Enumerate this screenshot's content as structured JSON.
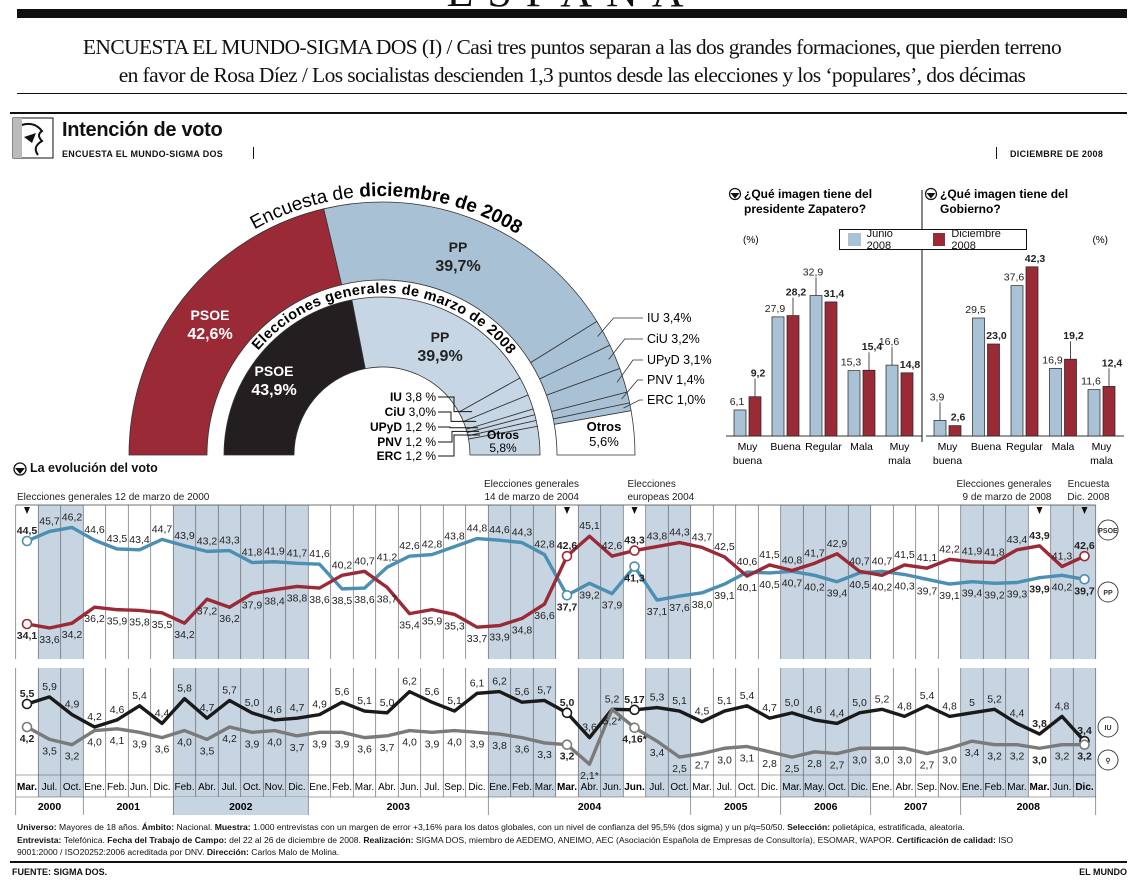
{
  "section": "ESPAÑA",
  "headline": {
    "lead": "ENCUESTA EL MUNDO-SIGMA DOS (I)",
    "line1_rest": " / Casi tres puntos separan a las dos grandes formaciones, que pierden terreno",
    "line2": "en favor de Rosa Díez / Los socialistas descienden 1,3 puntos desde las elecciones y los ‘populares’, dos décimas"
  },
  "graphic": {
    "title": "Intención de voto",
    "subtitle": "ENCUESTA EL MUNDO-SIGMA DOS",
    "date": "DICIEMBRE DE 2008",
    "evolution_title": "La evolución del voto"
  },
  "colors": {
    "psoe": "#9b2a37",
    "pp_outer": "#a8c1d5",
    "pp_inner": "#c6d6e4",
    "psoe_2008_election": "#231f20",
    "junio_bar": "#a9c2d6",
    "diciembre_bar": "#9b2a37",
    "pp_line": "#4b8fb2",
    "psoe_line": "#9b2a37",
    "black_line": "#1a1a1a",
    "gray_line": "#7a7a7a",
    "shade": "#c7d4e1"
  },
  "chart_data": [
    {
      "type": "pie",
      "variant": "half-donut",
      "rings": [
        {
          "title_normal": "Encuesta de ",
          "title_bold": "diciembre de 2008",
          "slices": [
            {
              "label": "PSOE",
              "value": 42.6,
              "text": "42,6%"
            },
            {
              "label": "PP",
              "value": 39.7,
              "text": "39,7%"
            },
            {
              "label": "IU",
              "value": 3.4,
              "text": "3,4%"
            },
            {
              "label": "CiU",
              "value": 3.2,
              "text": "3,2%"
            },
            {
              "label": "UPyD",
              "value": 3.1,
              "text": "3,1%"
            },
            {
              "label": "PNV",
              "value": 1.4,
              "text": "1,4%"
            },
            {
              "label": "ERC",
              "value": 1.0,
              "text": "1,0%"
            },
            {
              "label": "Otros",
              "value": 5.6,
              "text": "5,6%"
            }
          ]
        },
        {
          "title_bold": "Elecciones generales de marzo de 2008",
          "slices": [
            {
              "label": "PSOE",
              "value": 43.9,
              "text": "43,9%"
            },
            {
              "label": "PP",
              "value": 39.9,
              "text": "39,9%"
            },
            {
              "label": "IU",
              "value": 3.8,
              "text": "3,8 %"
            },
            {
              "label": "CiU",
              "value": 3.0,
              "text": "3,0%"
            },
            {
              "label": "UPyD",
              "value": 1.2,
              "text": "1,2 %"
            },
            {
              "label": "PNV",
              "value": 1.2,
              "text": "1,2 %"
            },
            {
              "label": "ERC",
              "value": 1.2,
              "text": "1,2 %"
            },
            {
              "label": "Otros",
              "value": 5.8,
              "text": "5,8%"
            }
          ]
        }
      ]
    },
    {
      "type": "bar",
      "title": "¿Qué imagen tiene del presidente Zapatero?",
      "title_lines": [
        "¿Qué imagen tiene del",
        "presidente Zapatero?"
      ],
      "ylabel": "(%)",
      "categories": [
        "Muy buena",
        "Buena",
        "Regular",
        "Mala",
        "Muy mala"
      ],
      "category_lines": [
        [
          "Muy",
          "buena"
        ],
        [
          "Buena"
        ],
        [
          "Regular"
        ],
        [
          "Mala"
        ],
        [
          "Muy",
          "mala"
        ]
      ],
      "series": [
        {
          "name": "Junio 2008",
          "values": [
            6.1,
            27.9,
            32.9,
            15.3,
            16.6
          ]
        },
        {
          "name": "Diciembre 2008",
          "values": [
            9.2,
            28.2,
            31.4,
            15.4,
            14.8
          ]
        }
      ]
    },
    {
      "type": "bar",
      "title": "¿Qué imagen tiene del Gobierno?",
      "title_lines": [
        "¿Qué imagen tiene del",
        "Gobierno?"
      ],
      "ylabel": "(%)",
      "categories": [
        "Muy buena",
        "Buena",
        "Regular",
        "Mala",
        "Muy mala"
      ],
      "category_lines": [
        [
          "Muy",
          "buena"
        ],
        [
          "Buena"
        ],
        [
          "Regular"
        ],
        [
          "Mala"
        ],
        [
          "Muy",
          "mala"
        ]
      ],
      "series": [
        {
          "name": "Junio 2008",
          "values": [
            3.9,
            29.5,
            37.6,
            16.9,
            11.6
          ]
        },
        {
          "name": "Diciembre 2008",
          "values": [
            2.6,
            23.0,
            42.3,
            19.2,
            12.4
          ]
        }
      ]
    },
    {
      "type": "line",
      "title": "La evolución del voto",
      "legend": {
        "junio": "Junio 2008",
        "diciembre": "Diciembre 2008"
      },
      "months": [
        "Mar.",
        "Jul.",
        "Oct.",
        "Ene.",
        "Feb.",
        "Jun.",
        "Dic.",
        "Feb.",
        "Abr.",
        "Jul.",
        "Oct.",
        "Nov.",
        "Dic.",
        "Ene.",
        "Feb.",
        "Mar.",
        "Abr.",
        "Jun.",
        "Jul.",
        "Sep.",
        "Dic.",
        "Ene.",
        "Feb.",
        "Mar.",
        "Mar.",
        "Abr.",
        "Jun.",
        "Jun.",
        "Jul.",
        "Oct.",
        "Mar.",
        "Jul.",
        "Oct.",
        "Dic.",
        "Mar.",
        "May.",
        "Oct.",
        "Dic.",
        "Ene.",
        "Abr.",
        "Sep.",
        "Nov.",
        "Ene.",
        "Feb.",
        "Mar.",
        "Mar.",
        "Jun.",
        "Dic."
      ],
      "years": [
        {
          "label": "2000",
          "from": 0,
          "to": 2
        },
        {
          "label": "2001",
          "from": 3,
          "to": 6
        },
        {
          "label": "2002",
          "from": 7,
          "to": 12
        },
        {
          "label": "2003",
          "from": 13,
          "to": 20
        },
        {
          "label": "2004",
          "from": 21,
          "to": 29
        },
        {
          "label": "2005",
          "from": 30,
          "to": 33
        },
        {
          "label": "2006",
          "from": 34,
          "to": 37
        },
        {
          "label": "2007",
          "from": 38,
          "to": 41
        },
        {
          "label": "2008",
          "from": 42,
          "to": 47
        }
      ],
      "events": [
        {
          "index": 0,
          "lines": [
            "Elecciones generales 12 de marzo de 2000"
          ]
        },
        {
          "index": 24,
          "lines": [
            "Elecciones generales",
            "14 de marzo de 2004"
          ]
        },
        {
          "index": 27,
          "lines": [
            "Elecciones",
            "europeas 2004"
          ]
        },
        {
          "index": 45,
          "lines": [
            "Elecciones generales",
            "9 de marzo de 2008"
          ]
        },
        {
          "index": 47,
          "lines": [
            "Encuesta",
            "Dic. 2008"
          ]
        }
      ],
      "panels": [
        {
          "ylim": [
            32,
            47.5
          ],
          "series": [
            {
              "color": "#4b8fb2",
              "logo": "pp-logo-icon",
              "values": [
                44.5,
                45.7,
                46.2,
                44.6,
                43.5,
                43.4,
                44.7,
                43.9,
                43.2,
                43.3,
                41.8,
                41.9,
                41.7,
                41.6,
                38.5,
                38.6,
                41.2,
                42.6,
                42.8,
                43.8,
                44.8,
                44.6,
                44.3,
                42.8,
                37.7,
                39.2,
                37.9,
                41.3,
                37.1,
                37.6,
                38.0,
                39.1,
                40.6,
                40.5,
                40.7,
                40.2,
                39.4,
                40.5,
                40.7,
                40.3,
                39.7,
                39.1,
                39.4,
                39.2,
                39.3,
                39.9,
                40.2,
                39.7
              ]
            },
            {
              "color": "#9b2a37",
              "logo": "psoe-logo-icon",
              "values": [
                34.1,
                33.6,
                34.2,
                36.2,
                35.9,
                35.8,
                35.5,
                34.2,
                37.2,
                36.2,
                37.9,
                38.4,
                38.8,
                38.6,
                40.2,
                40.7,
                38.7,
                35.4,
                35.9,
                35.3,
                33.7,
                33.9,
                34.8,
                36.6,
                42.6,
                45.1,
                42.6,
                43.3,
                43.8,
                44.3,
                43.7,
                42.5,
                40.1,
                41.5,
                40.8,
                41.7,
                42.9,
                40.7,
                40.2,
                41.5,
                41.1,
                42.2,
                41.9,
                41.8,
                43.4,
                43.9,
                41.3,
                42.6
              ]
            }
          ]
        },
        {
          "ylim": [
            1.5,
            7
          ],
          "series": [
            {
              "color": "#1a1a1a",
              "logo": "iu-logo-icon",
              "values": [
                5.5,
                5.9,
                4.9,
                4.2,
                4.6,
                5.4,
                4.4,
                5.8,
                4.7,
                5.7,
                5.0,
                4.6,
                4.7,
                4.9,
                5.6,
                5.1,
                5.0,
                6.2,
                5.6,
                5.1,
                6.1,
                6.2,
                5.6,
                5.7,
                5.0,
                3.6,
                5.2,
                5.17,
                5.3,
                5.1,
                4.5,
                5.1,
                5.4,
                4.7,
                5.0,
                4.6,
                4.4,
                5.0,
                5.2,
                4.8,
                5.4,
                4.8,
                5.0,
                5.2,
                4.4,
                3.8,
                4.8,
                3.4
              ],
              "label_overrides": {
                "42": "5"
              }
            },
            {
              "color": "#7a7a7a",
              "logo": "party-logo-icon",
              "values": [
                4.2,
                3.5,
                3.2,
                4.0,
                4.1,
                3.9,
                3.6,
                4.0,
                3.5,
                4.2,
                3.9,
                4.0,
                3.7,
                3.9,
                3.9,
                3.6,
                3.7,
                4.0,
                3.9,
                4.0,
                3.9,
                3.8,
                3.6,
                3.3,
                3.2,
                2.1,
                5.2,
                4.16,
                3.4,
                2.5,
                2.7,
                3.0,
                3.1,
                2.8,
                2.5,
                2.8,
                2.7,
                3.0,
                3.0,
                3.0,
                2.7,
                3.0,
                3.4,
                3.2,
                3.2,
                3.0,
                3.2,
                3.2
              ],
              "label_overrides": {
                "25": "2,1*",
                "26": "5,2*",
                "27": "4,16*"
              }
            }
          ]
        }
      ]
    }
  ],
  "footnote": [
    [
      {
        "b": "Universo: "
      },
      {
        "t": "Mayores de 18 años. "
      },
      {
        "b": "Ámbito: "
      },
      {
        "t": "Nacional. "
      },
      {
        "b": "Muestra: "
      },
      {
        "t": "1.000 entrevistas con un margen de error +3,16% para los datos globales, con un nivel de confianza del 95,5% (dos sigma) y un p/q=50/50. "
      },
      {
        "b": "Selección: "
      },
      {
        "t": "polietápica, estratificada, aleatoria."
      }
    ],
    [
      {
        "b": "Entrevista: "
      },
      {
        "t": "Telefónica. "
      },
      {
        "b": "Fecha del Trabajo de Campo: "
      },
      {
        "t": "del 22 al 26 de diciembre de 2008. "
      },
      {
        "b": "Realización: "
      },
      {
        "t": "SIGMA DOS, miembro de AEDEMO, ANEIMO, AEC (Asociación Española de Empresas de Consultoría), ESOMAR, WAPOR. "
      },
      {
        "b": "Certificación de calidad: "
      },
      {
        "t": "ISO"
      }
    ],
    [
      {
        "t": "9001:2000 / ISO20252:2006  acreditada por DNV. "
      },
      {
        "b": "Dirección: "
      },
      {
        "t": "Carlos Malo de Molina."
      }
    ]
  ],
  "source": "FUENTE: SIGMA DOS.",
  "publisher": "EL MUNDO"
}
